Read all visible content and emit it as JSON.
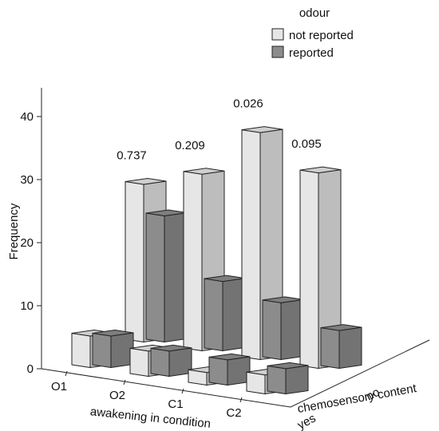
{
  "chart_data": {
    "type": "bar",
    "subtype": "3d-grouped-bar",
    "title": "",
    "ylabel": "Frequency",
    "xlabel": "awakening in condition",
    "zlabel": "chemosensory content",
    "ylim": [
      0,
      44
    ],
    "yticks": [
      0,
      10,
      20,
      30,
      40
    ],
    "categories": [
      "O1",
      "O2",
      "C1",
      "C2"
    ],
    "depth_categories": [
      "yes",
      "no"
    ],
    "legend": {
      "title": "odour",
      "placement": "top-right",
      "entries": [
        "not reported",
        "reported"
      ]
    },
    "series": [
      {
        "name": "not reported",
        "color": "#e6e6e6",
        "yes": [
          5,
          4,
          2,
          3
        ],
        "no": [
          25,
          28,
          36,
          31
        ]
      },
      {
        "name": "reported",
        "color": "#8c8c8c",
        "yes": [
          5,
          4,
          4,
          4
        ],
        "no": [
          20,
          11,
          9,
          6
        ]
      }
    ],
    "annotations": [
      "0.737",
      "0.209",
      "0.026",
      "0.095"
    ],
    "grid": false
  }
}
